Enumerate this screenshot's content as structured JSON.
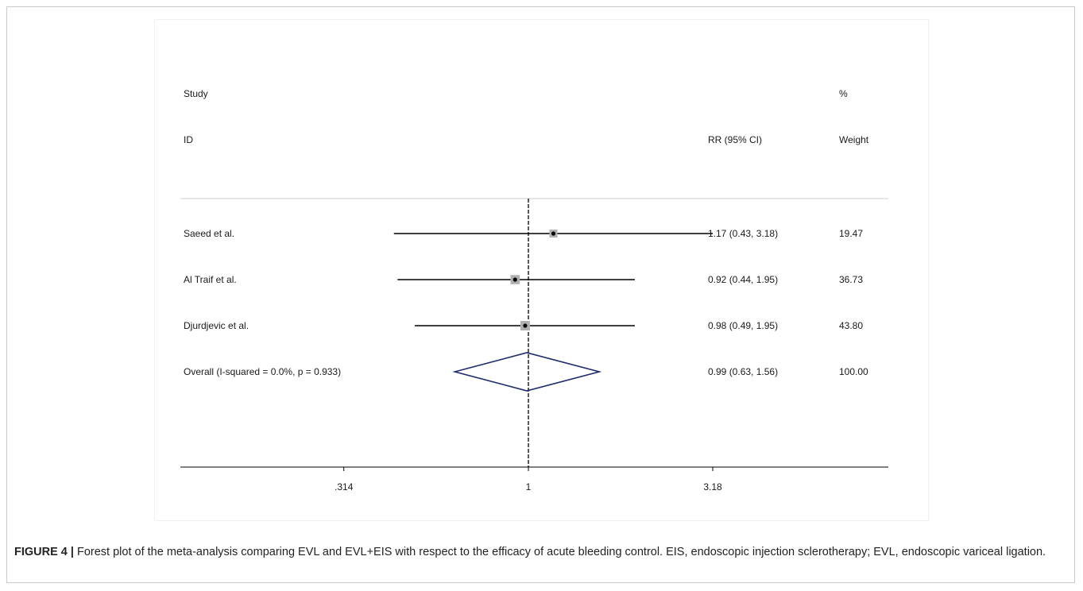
{
  "chart_data": {
    "type": "forest",
    "header": {
      "study_line1": "Study",
      "study_line2": "ID",
      "effect_label": "RR (95% CI)",
      "weight_line1": "%",
      "weight_line2": "Weight"
    },
    "studies": [
      {
        "name": "Saeed et al.",
        "rr": 1.17,
        "lower": 0.43,
        "upper": 3.18,
        "ci_text": "1.17 (0.43, 3.18)",
        "weight": 19.47,
        "weight_text": "19.47"
      },
      {
        "name": "Al Traif et al.",
        "rr": 0.92,
        "lower": 0.44,
        "upper": 1.95,
        "ci_text": "0.92 (0.44, 1.95)",
        "weight": 36.73,
        "weight_text": "36.73"
      },
      {
        "name": "Djurdjevic et al.",
        "rr": 0.98,
        "lower": 0.49,
        "upper": 1.95,
        "ci_text": "0.98 (0.49, 1.95)",
        "weight": 43.8,
        "weight_text": "43.80"
      }
    ],
    "overall": {
      "name": "Overall  (I-squared = 0.0%, p = 0.933)",
      "rr": 0.99,
      "lower": 0.63,
      "upper": 1.56,
      "ci_text": "0.99 (0.63, 1.56)",
      "weight_text": "100.00"
    },
    "x_axis": {
      "scale": "log",
      "ticks": [
        0.314,
        1,
        3.18
      ],
      "tick_labels": [
        ".314",
        "1",
        "3.18"
      ]
    },
    "null_line": 1,
    "colors": {
      "diamond": "#1f2a6b",
      "lines": "#000000",
      "box": "#b0b0b0"
    }
  },
  "caption": {
    "label": "FIGURE 4 |",
    "text": " Forest plot of the meta-analysis comparing EVL and EVL+EIS with respect to the efficacy of acute bleeding control. EIS, endoscopic injection sclerotherapy; EVL, endoscopic variceal ligation."
  }
}
